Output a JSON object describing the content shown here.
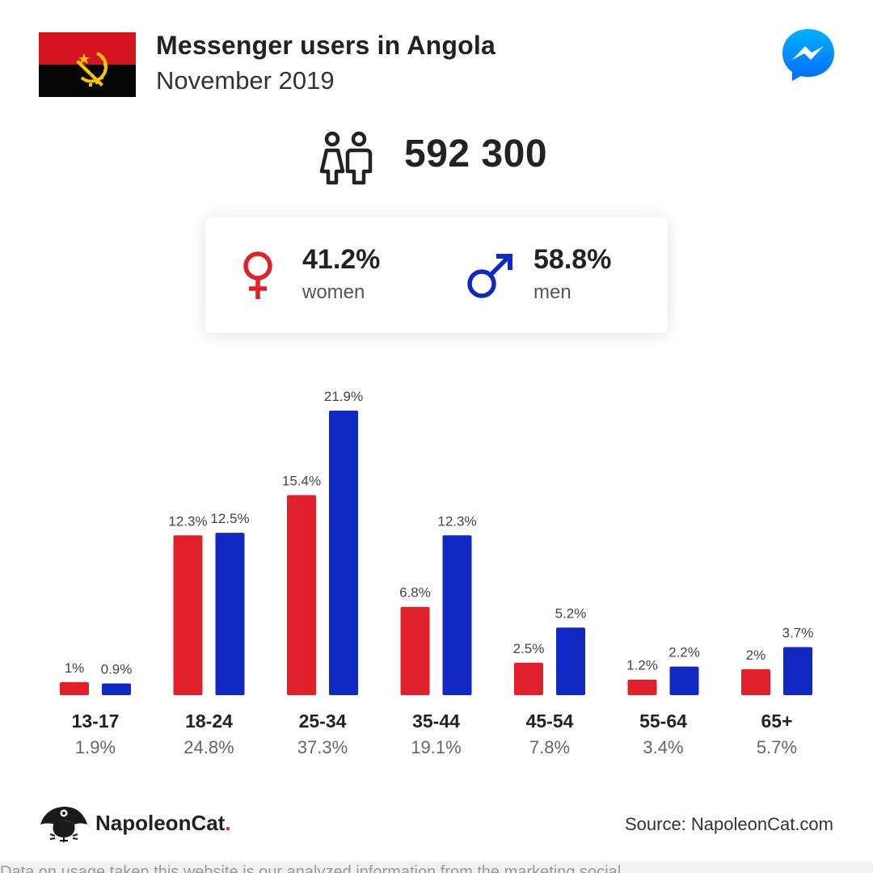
{
  "header": {
    "title": "Messenger users in Angola",
    "subtitle": "November 2019",
    "flag": "angola-flag",
    "app_icon": "messenger-icon"
  },
  "total": {
    "icon": "users-icon",
    "value": "592 300"
  },
  "gender": {
    "women": {
      "pct": "41.2%",
      "label": "women",
      "icon": "female-icon",
      "color": "#e0202a"
    },
    "men": {
      "pct": "58.8%",
      "label": "men",
      "icon": "male-icon",
      "color": "#1029c2"
    }
  },
  "chart_data": {
    "type": "bar",
    "categories": [
      "13-17",
      "18-24",
      "25-34",
      "35-44",
      "45-54",
      "55-64",
      "65+"
    ],
    "totals": [
      "1.9%",
      "24.8%",
      "37.3%",
      "19.1%",
      "7.8%",
      "3.4%",
      "5.7%"
    ],
    "series": [
      {
        "color": "#e0202a",
        "values": [
          1,
          12.3,
          15.4,
          6.8,
          2.5,
          1.2,
          2
        ],
        "labels": [
          "1%",
          "12.3%",
          "15.4%",
          "6.8%",
          "2.5%",
          "1.2%",
          "2%"
        ]
      },
      {
        "color": "#1029c2",
        "values": [
          0.9,
          12.5,
          21.9,
          12.3,
          5.2,
          2.2,
          3.7
        ],
        "labels": [
          "0.9%",
          "12.5%",
          "21.9%",
          "12.3%",
          "5.2%",
          "2.2%",
          "3.7%"
        ]
      }
    ],
    "ylim": [
      0,
      21.9
    ],
    "grid": false,
    "legend": "none"
  },
  "footer": {
    "logo_text": "NapoleonCat",
    "logo_dot": ".",
    "source": "Source: NapoleonCat.com",
    "disclaimer": "Data on usage taken this website is our analyzed information from the marketing social"
  }
}
